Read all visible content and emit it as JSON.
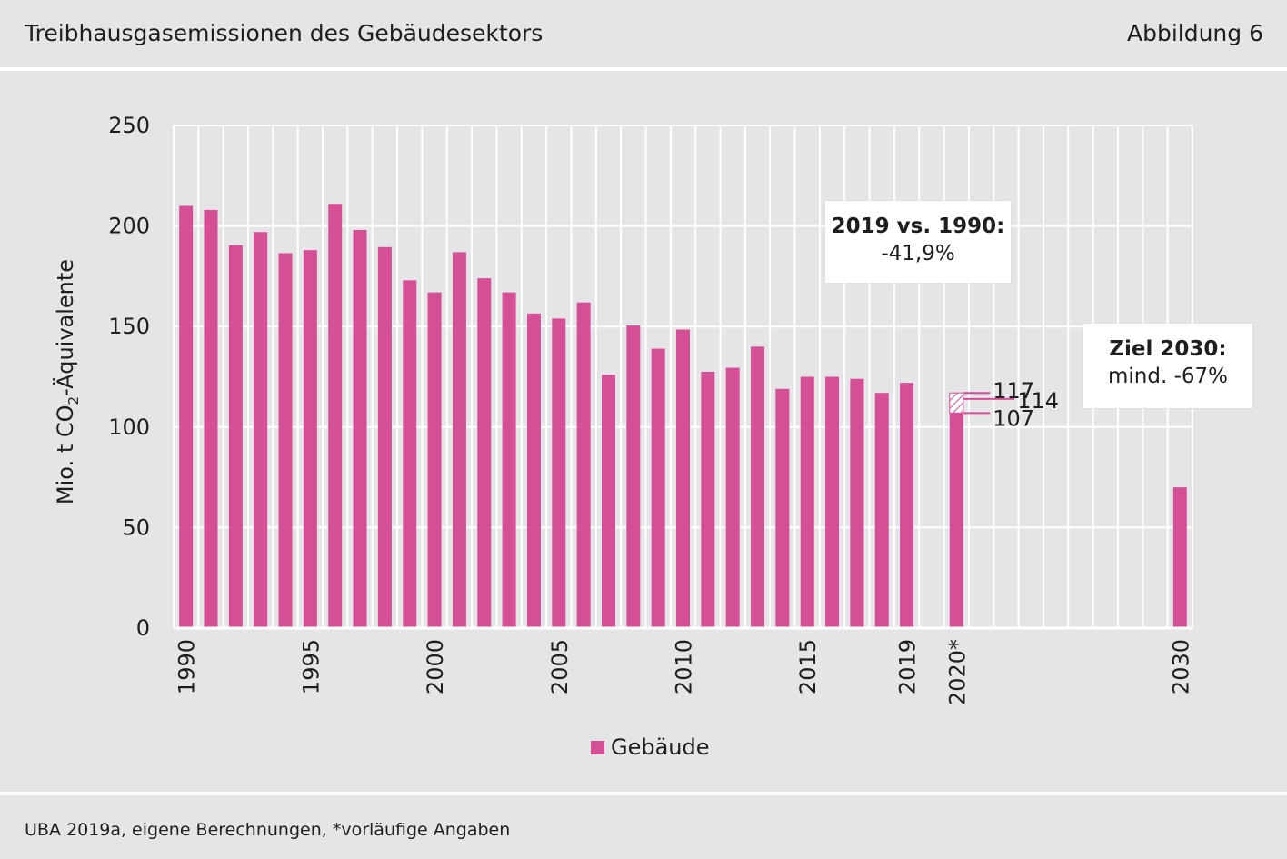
{
  "header": {
    "title": "Treibhausgasemissionen des Gebäudesektors",
    "figure_label": "Abbildung 6"
  },
  "footer": {
    "source": "UBA 2019a, eigene Berechnungen, *vorläufige Angaben"
  },
  "colors": {
    "bar": "#d44f96",
    "background": "#e5e5e8",
    "grid": "#ffffff"
  },
  "callouts": {
    "comparison": {
      "title": "2019 vs. 1990:",
      "value": "-41,9%"
    },
    "target": {
      "title": "Ziel 2030:",
      "value": "mind. -67%"
    }
  },
  "chart_data": {
    "type": "bar",
    "ylabel_main": "Mio. t CO",
    "ylabel_sub": "2",
    "ylabel_rest": "-Äquivalente",
    "ylim": [
      0,
      250
    ],
    "yticks": [
      0,
      50,
      100,
      150,
      200,
      250
    ],
    "grid": true,
    "legend": {
      "entries": [
        "Gebäude"
      ],
      "position": "bottom-center"
    },
    "categories": [
      "1990",
      "1991",
      "1992",
      "1993",
      "1994",
      "1995",
      "1996",
      "1997",
      "1998",
      "1999",
      "2000",
      "2001",
      "2002",
      "2003",
      "2004",
      "2005",
      "2006",
      "2007",
      "2008",
      "2009",
      "2010",
      "2011",
      "2012",
      "2013",
      "2014",
      "2015",
      "2016",
      "2017",
      "2018",
      "2019",
      "",
      "2020*",
      "",
      "",
      "",
      "",
      "",
      "",
      "",
      "",
      "2030"
    ],
    "tick_labels": {
      "1990": "1990",
      "1995": "1995",
      "2000": "2000",
      "2005": "2005",
      "2010": "2010",
      "2015": "2015",
      "2019": "2019",
      "2020*": "2020*",
      "2030": "2030"
    },
    "series": [
      {
        "name": "Gebäude",
        "values": [
          210,
          208,
          190.5,
          197,
          186.5,
          188,
          211,
          198,
          189.5,
          173,
          167,
          187,
          174,
          167,
          156.5,
          154,
          162,
          126,
          150.5,
          139,
          148.5,
          127.5,
          129.5,
          140,
          119,
          125,
          125,
          124,
          117,
          122,
          null,
          107,
          null,
          null,
          null,
          null,
          null,
          null,
          null,
          null,
          70
        ]
      }
    ],
    "projection_2020": {
      "range": [
        107,
        117
      ],
      "labels": [
        "117",
        "114",
        "107"
      ],
      "values": [
        117,
        114,
        107
      ]
    }
  }
}
